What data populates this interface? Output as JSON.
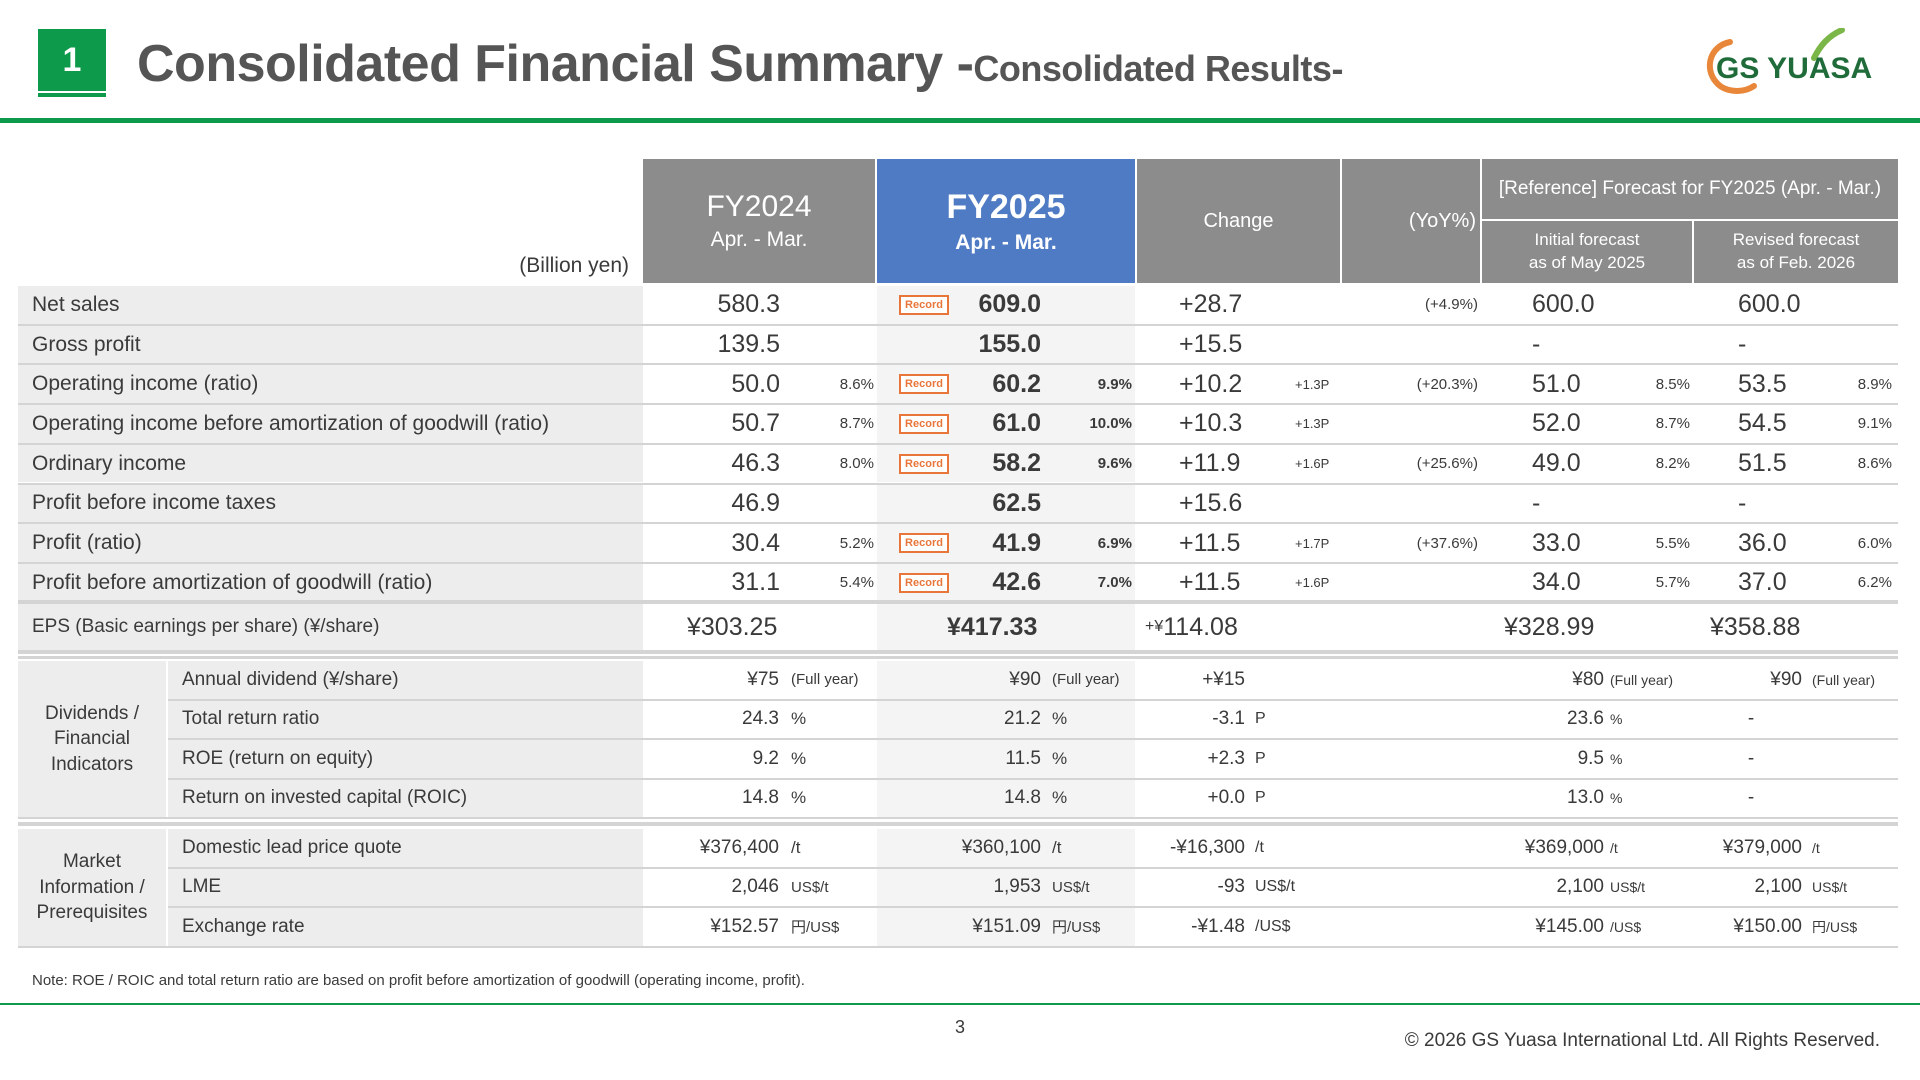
{
  "header": {
    "section_number": "1",
    "title_main": "Consolidated Financial Summary -",
    "title_sub": "Consolidated Results-",
    "logo_text": "GS YUASA"
  },
  "table": {
    "unit_label": "(Billion yen)",
    "col_fy2024": {
      "line1": "FY2024",
      "line2": "Apr. - Mar."
    },
    "col_fy2025": {
      "line1": "FY2025",
      "line2": "Apr. - Mar."
    },
    "col_change": "Change",
    "col_yoy": "(YoY%)",
    "col_reference": "[Reference] Forecast for FY2025 (Apr. - Mar.)",
    "col_initial": {
      "line1": "Initial forecast",
      "line2": "as of May 2025"
    },
    "col_revised": {
      "line1": "Revised forecast",
      "line2": "as of Feb. 2026"
    },
    "record_label": "Record",
    "rows": [
      {
        "label": "Net sales",
        "fy24": "580.3",
        "fy24r": "",
        "fy25": "609.0",
        "fy25r": "",
        "record": true,
        "chg": "+28.7",
        "chgp": "",
        "yoy": "(+4.9%)",
        "ini": "600.0",
        "inir": "",
        "rev": "600.0",
        "revr": ""
      },
      {
        "label": "Gross profit",
        "fy24": "139.5",
        "fy24r": "",
        "fy25": "155.0",
        "fy25r": "",
        "record": false,
        "chg": "+15.5",
        "chgp": "",
        "yoy": "",
        "ini": "-",
        "inir": "",
        "rev": "-",
        "revr": ""
      },
      {
        "label": "Operating income (ratio)",
        "fy24": "50.0",
        "fy24r": "8.6%",
        "fy25": "60.2",
        "fy25r": "9.9%",
        "record": true,
        "chg": "+10.2",
        "chgp": "+1.3P",
        "yoy": "(+20.3%)",
        "ini": "51.0",
        "inir": "8.5%",
        "rev": "53.5",
        "revr": "8.9%"
      },
      {
        "label": "Operating income before amortization of goodwill (ratio)",
        "fy24": "50.7",
        "fy24r": "8.7%",
        "fy25": "61.0",
        "fy25r": "10.0%",
        "record": true,
        "chg": "+10.3",
        "chgp": "+1.3P",
        "yoy": "",
        "ini": "52.0",
        "inir": "8.7%",
        "rev": "54.5",
        "revr": "9.1%"
      },
      {
        "label": "Ordinary income",
        "fy24": "46.3",
        "fy24r": "8.0%",
        "fy25": "58.2",
        "fy25r": "9.6%",
        "record": true,
        "chg": "+11.9",
        "chgp": "+1.6P",
        "yoy": "(+25.6%)",
        "ini": "49.0",
        "inir": "8.2%",
        "rev": "51.5",
        "revr": "8.6%"
      },
      {
        "label": "Profit before income taxes",
        "fy24": "46.9",
        "fy24r": "",
        "fy25": "62.5",
        "fy25r": "",
        "record": false,
        "chg": "+15.6",
        "chgp": "",
        "yoy": "",
        "ini": "-",
        "inir": "",
        "rev": "-",
        "revr": ""
      },
      {
        "label": "Profit (ratio)",
        "fy24": "30.4",
        "fy24r": "5.2%",
        "fy25": "41.9",
        "fy25r": "6.9%",
        "record": true,
        "chg": "+11.5",
        "chgp": "+1.7P",
        "yoy": "(+37.6%)",
        "ini": "33.0",
        "inir": "5.5%",
        "rev": "36.0",
        "revr": "6.0%"
      },
      {
        "label": "Profit before amortization of goodwill (ratio)",
        "fy24": "31.1",
        "fy24r": "5.4%",
        "fy25": "42.6",
        "fy25r": "7.0%",
        "record": true,
        "chg": "+11.5",
        "chgp": "+1.6P",
        "yoy": "",
        "ini": "34.0",
        "inir": "5.7%",
        "rev": "37.0",
        "revr": "6.2%"
      }
    ],
    "eps": {
      "label": "EPS (Basic earnings per share) (¥/share)",
      "fy24": "¥303.25",
      "fy25": "¥417.33",
      "chg_prefix": "+¥",
      "chg": "114.08",
      "ini": "¥328.99",
      "rev": "¥358.88"
    },
    "div_group_label": [
      "Dividends /",
      "Financial",
      "Indicators"
    ],
    "div_rows": [
      {
        "label": "Annual dividend (¥/share)",
        "fy24": "¥75",
        "fy24u": "(Full year)",
        "fy25": "¥90",
        "fy25u": "(Full year)",
        "chg": "+¥15",
        "chgu": "",
        "ini": "¥80",
        "iniu": "(Full year)",
        "rev": "¥90",
        "revu": "(Full year)"
      },
      {
        "label": "Total return ratio",
        "fy24": "24.3",
        "fy24u": "%",
        "fy25": "21.2",
        "fy25u": "%",
        "chg": "-3.1",
        "chgu": "P",
        "ini": "23.6",
        "iniu": "%",
        "rev": "-",
        "revu": ""
      },
      {
        "label": "ROE (return on equity)",
        "fy24": "9.2",
        "fy24u": "%",
        "fy25": "11.5",
        "fy25u": "%",
        "chg": "+2.3",
        "chgu": "P",
        "ini": "9.5",
        "iniu": "%",
        "rev": "-",
        "revu": ""
      },
      {
        "label": "Return on invested capital (ROIC)",
        "fy24": "14.8",
        "fy24u": "%",
        "fy25": "14.8",
        "fy25u": "%",
        "chg": "+0.0",
        "chgu": "P",
        "ini": "13.0",
        "iniu": "%",
        "rev": "-",
        "revu": ""
      }
    ],
    "mkt_group_label": [
      "Market",
      "Information /",
      "Prerequisites"
    ],
    "mkt_rows": [
      {
        "label": "Domestic lead price quote",
        "fy24": "¥376,400",
        "fy24u": "/t",
        "fy25": "¥360,100",
        "fy25u": "/t",
        "chg": "-¥16,300",
        "chgu": "/t",
        "ini": "¥369,000",
        "iniu": "/t",
        "rev": "¥379,000",
        "revu": "/t"
      },
      {
        "label": "LME",
        "fy24": "2,046",
        "fy24u": "US$/t",
        "fy25": "1,953",
        "fy25u": "US$/t",
        "chg": "-93",
        "chgu": "US$/t",
        "ini": "2,100",
        "iniu": "US$/t",
        "rev": "2,100",
        "revu": "US$/t"
      },
      {
        "label": "Exchange rate",
        "fy24": "¥152.57",
        "fy24u": "円/US$",
        "fy25": "¥151.09",
        "fy25u": "円/US$",
        "chg": "-¥1.48",
        "chgu": "/US$",
        "ini": "¥145.00",
        "iniu": "/US$",
        "rev": "¥150.00",
        "revu": "円/US$"
      }
    ]
  },
  "footer": {
    "note": "Note: ROE / ROIC and total return ratio are based on profit before amortization of goodwill (operating income, profit).",
    "page_number": "3",
    "copyright": "© 2026 GS Yuasa International Ltd. All Rights Reserved."
  }
}
